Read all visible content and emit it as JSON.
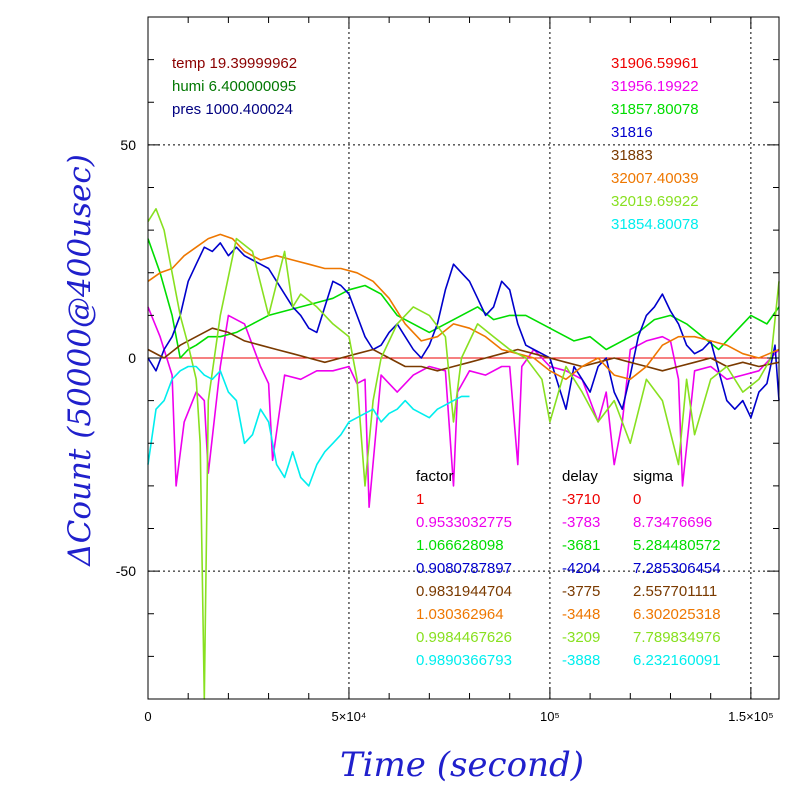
{
  "chart_data": {
    "type": "line",
    "xlabel": "Time (second)",
    "ylabel": "ΔCount (50000@400usec)",
    "xlim": [
      0,
      157000
    ],
    "ylim": [
      -80,
      80
    ],
    "grid": true,
    "x_ticks": [
      {
        "value": 0,
        "label": "0"
      },
      {
        "value": 50000,
        "label": "5×10⁴"
      },
      {
        "value": 100000,
        "label": "10⁵"
      },
      {
        "value": 150000,
        "label": "1.5×10⁵"
      }
    ],
    "y_ticks": [
      {
        "value": 50,
        "label": "50"
      },
      {
        "value": 0,
        "label": "0"
      },
      {
        "value": -50,
        "label": "-50"
      }
    ],
    "env_info": [
      {
        "text": "temp 19.39999962",
        "color": "#8b0000"
      },
      {
        "text": "humi 6.400000095",
        "color": "#007700"
      },
      {
        "text": "pres 1000.400024",
        "color": "#000080"
      }
    ],
    "table_headers": {
      "factor": "factor",
      "delay": "delay",
      "sigma": "sigma"
    },
    "series": [
      {
        "mean": "31906.59961",
        "factor": "1",
        "delay": "-3710",
        "sigma": "0",
        "color": "#ee0000",
        "x": [
          0,
          157000
        ],
        "y": [
          0,
          0
        ]
      },
      {
        "mean": "31956.19922",
        "factor": "0.9533032775",
        "delay": "-3783",
        "sigma": "8.73476696",
        "color": "#ee00ee",
        "x": [
          0,
          3000,
          6000,
          7000,
          9000,
          12000,
          14000,
          15000,
          18000,
          20000,
          24000,
          28000,
          30000,
          31000,
          34000,
          38000,
          42000,
          46000,
          50000,
          52000,
          54000,
          55000,
          58000,
          62000,
          66000,
          70000,
          74000,
          76000,
          77000,
          80000,
          84000,
          88000,
          90000,
          92000,
          93000,
          96000,
          100000,
          104000,
          108000,
          112000,
          114000,
          116000,
          118000,
          120000,
          124000,
          128000,
          130000,
          132000,
          133000,
          136000,
          140000,
          144000,
          148000,
          152000,
          157000
        ],
        "y": [
          12,
          5,
          -4,
          -30,
          -15,
          -8,
          -10,
          -27,
          -2,
          10,
          8,
          -2,
          -6,
          -24,
          -4,
          -5,
          -3,
          -3,
          -2,
          -6,
          -5,
          -35,
          -4,
          -8,
          -4,
          -2,
          -3,
          -30,
          -8,
          -3,
          -4,
          -2,
          -2,
          -25,
          -2,
          2,
          -2,
          -3,
          -5,
          -15,
          -8,
          -25,
          -15,
          2,
          4,
          5,
          4,
          -5,
          -30,
          -3,
          -2,
          -5,
          -4,
          -3,
          2
        ]
      },
      {
        "mean": "31857.80078",
        "factor": "1.066628098",
        "delay": "-3681",
        "sigma": "5.284480572",
        "color": "#00dd00",
        "x": [
          0,
          3000,
          6000,
          8000,
          10000,
          12000,
          15000,
          18000,
          22000,
          26000,
          30000,
          34000,
          38000,
          42000,
          46000,
          50000,
          54000,
          58000,
          62000,
          66000,
          70000,
          74000,
          78000,
          82000,
          86000,
          90000,
          94000,
          98000,
          102000,
          106000,
          110000,
          114000,
          118000,
          122000,
          126000,
          130000,
          134000,
          138000,
          142000,
          146000,
          150000,
          154000,
          157000
        ],
        "y": [
          28,
          20,
          10,
          0,
          2,
          3,
          5,
          5,
          6,
          8,
          10,
          11,
          12,
          13,
          14,
          16,
          17,
          15,
          10,
          8,
          6,
          8,
          10,
          12,
          9,
          10,
          10,
          8,
          6,
          4,
          5,
          2,
          4,
          6,
          9,
          10,
          8,
          5,
          2,
          6,
          10,
          8,
          12
        ]
      },
      {
        "mean": "31816",
        "factor": "0.9080787897",
        "delay": "-4204",
        "sigma": "7.285306454",
        "color": "#0000cc",
        "x": [
          0,
          2000,
          4000,
          6000,
          8000,
          10000,
          12000,
          14000,
          16000,
          18000,
          20000,
          22000,
          24000,
          26000,
          28000,
          30000,
          32000,
          34000,
          36000,
          38000,
          40000,
          42000,
          44000,
          46000,
          48000,
          50000,
          52000,
          54000,
          56000,
          58000,
          60000,
          62000,
          64000,
          66000,
          68000,
          70000,
          72000,
          74000,
          76000,
          78000,
          80000,
          82000,
          84000,
          86000,
          88000,
          90000,
          92000,
          94000,
          96000,
          98000,
          100000,
          102000,
          104000,
          106000,
          108000,
          110000,
          112000,
          114000,
          116000,
          118000,
          120000,
          122000,
          124000,
          126000,
          128000,
          130000,
          132000,
          134000,
          136000,
          138000,
          140000,
          142000,
          144000,
          146000,
          148000,
          150000,
          152000,
          154000,
          156000,
          157000
        ],
        "y": [
          0,
          -3,
          2,
          5,
          10,
          18,
          22,
          26,
          25,
          27,
          24,
          26,
          24,
          23,
          22,
          21,
          18,
          15,
          12,
          10,
          7,
          6,
          12,
          18,
          17,
          15,
          10,
          5,
          2,
          3,
          6,
          8,
          5,
          2,
          0,
          3,
          8,
          16,
          22,
          20,
          18,
          14,
          10,
          12,
          18,
          16,
          8,
          3,
          2,
          1,
          0,
          -6,
          -12,
          -2,
          -5,
          -8,
          -2,
          0,
          -8,
          -12,
          -4,
          5,
          10,
          12,
          15,
          11,
          8,
          3,
          1,
          2,
          4,
          -3,
          -10,
          -12,
          -10,
          -14,
          -8,
          -6,
          3,
          -10
        ]
      },
      {
        "mean": "31883",
        "factor": "0.9831944704",
        "delay": "-3775",
        "sigma": "2.557701111",
        "color": "#7a3a00",
        "x": [
          0,
          4000,
          8000,
          12000,
          16000,
          20000,
          24000,
          28000,
          32000,
          36000,
          40000,
          44000,
          48000,
          52000,
          56000,
          60000,
          64000,
          68000,
          72000,
          76000,
          80000,
          84000,
          88000,
          92000,
          96000,
          100000,
          104000,
          108000,
          112000,
          116000,
          120000,
          124000,
          128000,
          132000,
          136000,
          140000,
          144000,
          148000,
          152000,
          157000
        ],
        "y": [
          2,
          0,
          3,
          5,
          7,
          6,
          4,
          3,
          2,
          1,
          0,
          -1,
          0,
          1,
          2,
          0,
          -2,
          -2,
          -3,
          -2,
          -1,
          0,
          1,
          2,
          1,
          0,
          -1,
          -2,
          -1,
          0,
          -1,
          -2,
          -3,
          -2,
          -1,
          0,
          -2,
          -1,
          -2,
          -1
        ]
      },
      {
        "mean": "32007.40039",
        "factor": "1.030362964",
        "delay": "-3448",
        "sigma": "6.302025318",
        "color": "#ee7700",
        "x": [
          0,
          3000,
          6000,
          9000,
          12000,
          15000,
          18000,
          21000,
          24000,
          28000,
          32000,
          36000,
          40000,
          44000,
          48000,
          52000,
          56000,
          60000,
          64000,
          68000,
          72000,
          76000,
          80000,
          84000,
          88000,
          92000,
          96000,
          100000,
          104000,
          108000,
          112000,
          116000,
          120000,
          124000,
          128000,
          132000,
          136000,
          140000,
          144000,
          148000,
          152000,
          157000
        ],
        "y": [
          18,
          20,
          21,
          24,
          26,
          28,
          29,
          28,
          25,
          23,
          24,
          23,
          22,
          21,
          21,
          20,
          18,
          14,
          8,
          4,
          5,
          8,
          7,
          5,
          2,
          1,
          0,
          -3,
          -5,
          -2,
          0,
          -4,
          -5,
          -2,
          3,
          5,
          5,
          4,
          3,
          1,
          0,
          2
        ]
      },
      {
        "mean": "32019.69922",
        "factor": "0.9984467626",
        "delay": "-3209",
        "sigma": "7.789834976",
        "color": "#88e020",
        "x": [
          0,
          2000,
          4000,
          6000,
          8000,
          10000,
          12000,
          13000,
          14000,
          15000,
          18000,
          22000,
          26000,
          30000,
          34000,
          36000,
          38000,
          42000,
          46000,
          50000,
          52000,
          54000,
          56000,
          58000,
          62000,
          66000,
          70000,
          74000,
          76000,
          78000,
          82000,
          86000,
          90000,
          94000,
          98000,
          100000,
          104000,
          108000,
          112000,
          116000,
          120000,
          124000,
          128000,
          132000,
          134000,
          136000,
          140000,
          144000,
          148000,
          152000,
          155000,
          157000
        ],
        "y": [
          32,
          35,
          30,
          20,
          10,
          3,
          -5,
          -20,
          -80,
          -10,
          10,
          28,
          25,
          10,
          25,
          12,
          15,
          12,
          8,
          5,
          -5,
          -30,
          -10,
          0,
          8,
          12,
          10,
          5,
          -15,
          0,
          8,
          5,
          2,
          0,
          -5,
          -15,
          -2,
          -8,
          -15,
          -10,
          -20,
          -5,
          -10,
          -25,
          -5,
          -18,
          -5,
          -2,
          -8,
          -5,
          0,
          18
        ]
      },
      {
        "mean": "31854.80078",
        "factor": "0.9890366793",
        "delay": "-3888",
        "sigma": "6.232160091",
        "color": "#00eeee",
        "x": [
          0,
          2000,
          4000,
          6000,
          8000,
          10000,
          12000,
          14000,
          16000,
          18000,
          20000,
          22000,
          24000,
          26000,
          28000,
          30000,
          32000,
          34000,
          36000,
          38000,
          40000,
          42000,
          44000,
          46000,
          48000,
          50000,
          52000,
          54000,
          56000,
          58000,
          60000,
          62000,
          64000,
          66000,
          68000,
          70000,
          72000,
          74000,
          76000,
          78000,
          80000
        ],
        "y": [
          -25,
          -12,
          -10,
          -5,
          -3,
          -2,
          -2,
          -4,
          -5,
          -3,
          -8,
          -10,
          -20,
          -18,
          -12,
          -15,
          -25,
          -28,
          -22,
          -28,
          -30,
          -25,
          -22,
          -20,
          -18,
          -15,
          -14,
          -13,
          -12,
          -15,
          -13,
          -12,
          -10,
          -12,
          -13,
          -14,
          -12,
          -11,
          -10,
          -9,
          -9
        ]
      }
    ]
  }
}
